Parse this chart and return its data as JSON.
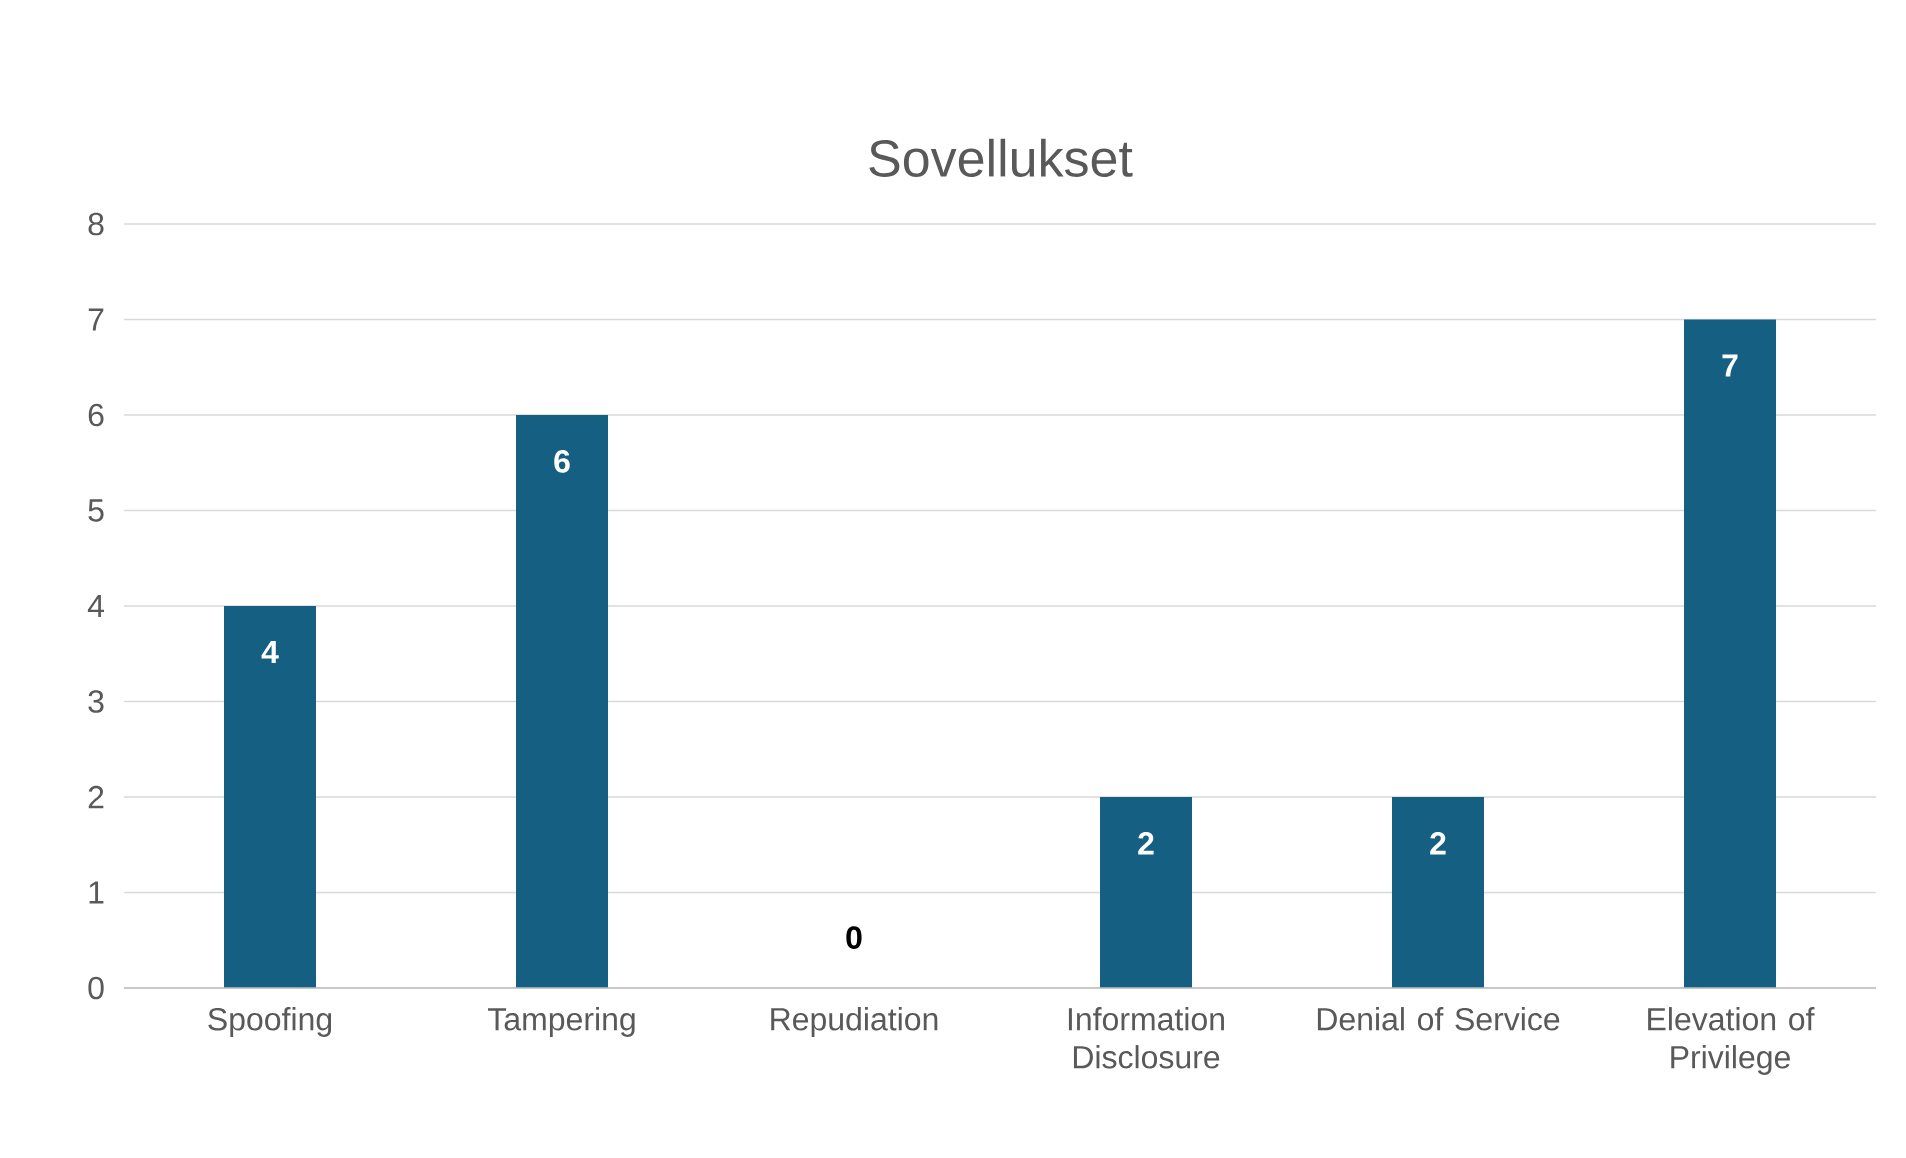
{
  "chart_data": {
    "type": "bar",
    "title": "Sovellukset",
    "categories": [
      "Spoofing",
      "Tampering",
      "Repudiation",
      "Information Disclosure",
      "Denial of Service",
      "Elevation of Privilege"
    ],
    "values": [
      4,
      6,
      0,
      2,
      2,
      7
    ],
    "color": "#156082",
    "ylim": [
      0,
      8
    ],
    "yticks": [
      0,
      1,
      2,
      3,
      4,
      5,
      6,
      7,
      8
    ],
    "grid": "y",
    "data_labels": true
  }
}
